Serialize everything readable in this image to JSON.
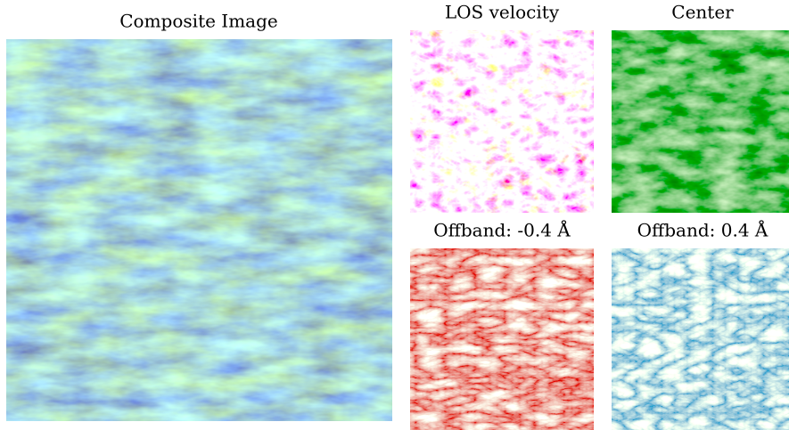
{
  "panels": [
    {
      "title": "Composite Image"
    },
    {
      "title": "LOS velocity"
    },
    {
      "title": "Center"
    },
    {
      "title": "Offband: -0.4 Å"
    },
    {
      "title": "Offband: 0.4 Å"
    }
  ]
}
